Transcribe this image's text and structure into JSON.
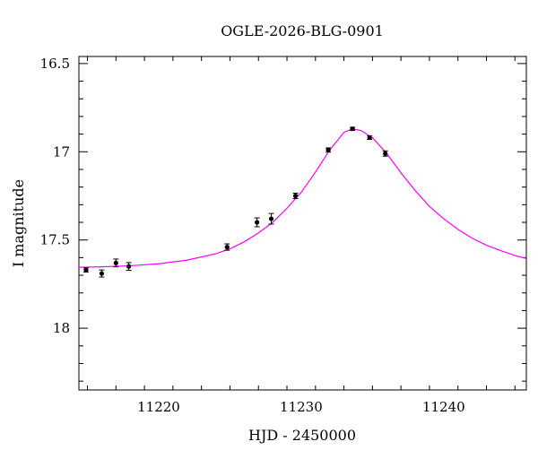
{
  "chart_data": {
    "type": "scatter",
    "title": "OGLE-2026-BLG-0901",
    "xlabel": "HJD - 2450000",
    "ylabel": "I magnitude",
    "xlim": [
      11214.4,
      11245.8
    ],
    "ylim": [
      18.35,
      16.46
    ],
    "y_inverted": true,
    "x_ticks": [
      11220,
      11230,
      11240
    ],
    "x_tick_labels": [
      "11220",
      "11230",
      "11240"
    ],
    "y_ticks": [
      16.5,
      17,
      17.5,
      18
    ],
    "y_tick_labels": [
      "16.5",
      "17",
      "17.5",
      "18"
    ],
    "grid": false,
    "colors": {
      "model": "#ff00ff",
      "points": "#000000",
      "axes": "#000000"
    },
    "series": [
      {
        "kind": "points",
        "x": [
          11214.9,
          11216.0,
          11217.0,
          11217.9,
          11224.8,
          11226.9,
          11227.9,
          11229.6,
          11231.9,
          11233.6,
          11234.8,
          11235.9
        ],
        "y": [
          17.67,
          17.69,
          17.63,
          17.65,
          17.54,
          17.4,
          17.38,
          17.25,
          16.99,
          16.87,
          16.92,
          17.01
        ],
        "err": [
          0.012,
          0.02,
          0.022,
          0.022,
          0.018,
          0.025,
          0.03,
          0.015,
          0.012,
          0.009,
          0.01,
          0.015
        ]
      },
      {
        "kind": "model",
        "type": "line",
        "x": [
          11214.4,
          11216,
          11218,
          11220,
          11222,
          11224,
          11225,
          11226,
          11227,
          11228,
          11229,
          11230,
          11231,
          11232,
          11233,
          11233.6,
          11234.2,
          11235,
          11236,
          11237,
          11238,
          11239,
          11240,
          11241,
          11242,
          11243,
          11244,
          11245,
          11245.8
        ],
        "y": [
          17.655,
          17.652,
          17.646,
          17.635,
          17.614,
          17.578,
          17.55,
          17.51,
          17.46,
          17.4,
          17.32,
          17.23,
          17.115,
          16.99,
          16.89,
          16.87,
          16.88,
          16.92,
          17.01,
          17.12,
          17.22,
          17.31,
          17.38,
          17.44,
          17.49,
          17.53,
          17.56,
          17.588,
          17.605
        ]
      }
    ]
  }
}
